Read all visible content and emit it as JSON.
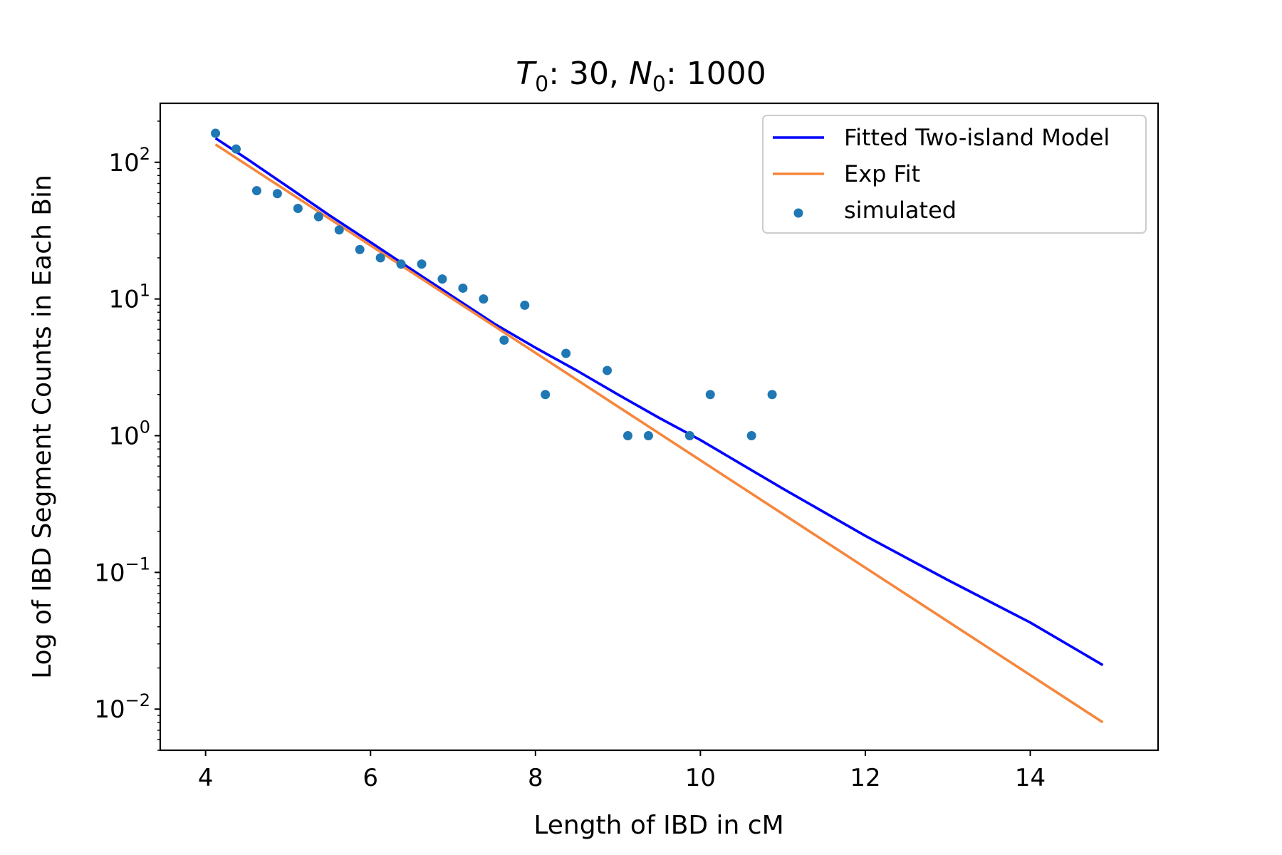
{
  "chart_data": {
    "type": "scatter",
    "title_parts": {
      "t_var": "T",
      "t_sub": "0",
      "t_value": ": 30, ",
      "n_var": "N",
      "n_sub": "0",
      "n_value": ": 1000"
    },
    "xlabel": "Length of IBD in cM",
    "ylabel": "Log of IBD Segment Counts in Each Bin",
    "xlim": [
      3.45,
      15.55
    ],
    "ylim": [
      0.005,
      270
    ],
    "yscale": "log",
    "grid": false,
    "legend_position": "top-right",
    "x_ticks": [
      {
        "value": 4,
        "label": "4"
      },
      {
        "value": 6,
        "label": "6"
      },
      {
        "value": 8,
        "label": "8"
      },
      {
        "value": 10,
        "label": "10"
      },
      {
        "value": 12,
        "label": "12"
      },
      {
        "value": 14,
        "label": "14"
      }
    ],
    "y_ticks": [
      {
        "value": 100,
        "base": "10",
        "exp": "2"
      },
      {
        "value": 10,
        "base": "10",
        "exp": "1"
      },
      {
        "value": 1,
        "base": "10",
        "exp": "0"
      },
      {
        "value": 0.1,
        "base": "10",
        "exp": "−1"
      },
      {
        "value": 0.01,
        "base": "10",
        "exp": "−2"
      }
    ],
    "series": [
      {
        "name": "Fitted Two-island Model",
        "type": "line",
        "color": "#0000ff",
        "x": [
          4.12,
          4.5,
          5.0,
          5.5,
          6.0,
          6.5,
          7.0,
          7.5,
          8.0,
          8.5,
          9.0,
          9.5,
          10.0,
          11.0,
          12.0,
          13.0,
          14.0,
          14.88
        ],
        "y": [
          150,
          106,
          66,
          41,
          26,
          16.4,
          10.4,
          6.6,
          4.4,
          3.0,
          2.0,
          1.35,
          0.93,
          0.41,
          0.185,
          0.088,
          0.043,
          0.021
        ]
      },
      {
        "name": "Exp Fit",
        "type": "line",
        "color": "#f5873d",
        "x": [
          4.12,
          14.88
        ],
        "y": [
          135,
          0.008
        ]
      },
      {
        "name": "simulated",
        "type": "scatter",
        "color": "#1f77b4",
        "x": [
          4.12,
          4.37,
          4.62,
          4.87,
          5.12,
          5.37,
          5.62,
          5.87,
          6.12,
          6.37,
          6.62,
          6.87,
          7.12,
          7.37,
          7.62,
          7.87,
          8.12,
          8.37,
          8.87,
          9.12,
          9.37,
          9.87,
          10.12,
          10.62,
          10.87
        ],
        "y": [
          163,
          125,
          62,
          59,
          46,
          40,
          32,
          23,
          20,
          18,
          18,
          14,
          12,
          10,
          5,
          9,
          2,
          4,
          3,
          1,
          1,
          1,
          2,
          1,
          2
        ]
      }
    ]
  }
}
